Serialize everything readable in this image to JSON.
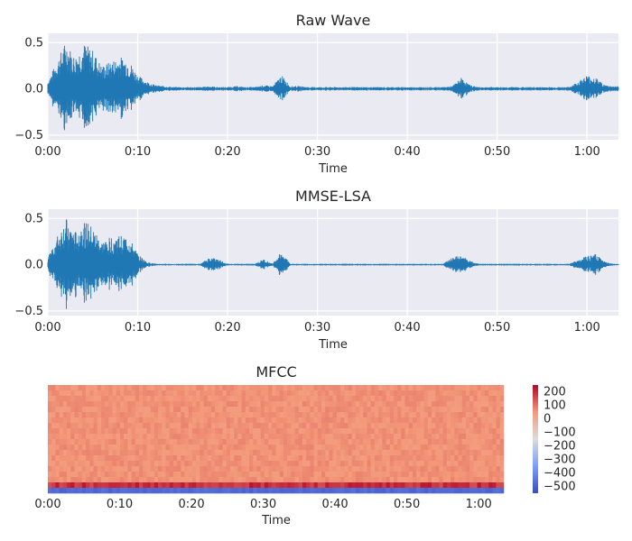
{
  "chart_data": [
    {
      "type": "line",
      "title": "Raw Wave",
      "xlabel": "Time",
      "ylabel": "",
      "xlim": [
        0,
        63.5
      ],
      "ylim": [
        -0.55,
        0.6
      ],
      "x_ticks": [
        0,
        10,
        20,
        30,
        40,
        50,
        60
      ],
      "x_tick_labels": [
        "0:00",
        "0:10",
        "0:20",
        "0:30",
        "0:40",
        "0:50",
        "1:00"
      ],
      "y_ticks": [
        0.5,
        0.0,
        -0.5
      ],
      "y_tick_labels": [
        "0.5",
        "0.0",
        "−0.5"
      ],
      "grid": true,
      "series": [
        {
          "values": {
            "t": [
              0,
              1,
              2,
              3,
              4,
              5,
              6,
              7,
              8,
              9,
              10,
              11,
              12,
              13,
              14,
              15,
              16,
              17,
              18,
              19,
              20,
              21,
              22,
              23,
              24,
              25,
              26,
              27,
              28,
              29,
              30,
              31,
              32,
              33,
              34,
              35,
              36,
              37,
              38,
              39,
              40,
              41,
              42,
              43,
              44,
              45,
              46,
              47,
              48,
              49,
              50,
              51,
              52,
              53,
              54,
              55,
              56,
              57,
              58,
              59,
              60,
              61,
              62,
              63
            ],
            "amp": [
              0.08,
              0.3,
              0.52,
              0.35,
              0.5,
              0.42,
              0.25,
              0.3,
              0.35,
              0.32,
              0.15,
              0.08,
              0.04,
              0.03,
              0.02,
              0.02,
              0.02,
              0.02,
              0.03,
              0.02,
              0.02,
              0.03,
              0.02,
              0.02,
              0.04,
              0.03,
              0.15,
              0.03,
              0.03,
              0.02,
              0.02,
              0.02,
              0.02,
              0.02,
              0.02,
              0.02,
              0.02,
              0.02,
              0.02,
              0.02,
              0.02,
              0.02,
              0.02,
              0.02,
              0.02,
              0.03,
              0.12,
              0.04,
              0.02,
              0.02,
              0.02,
              0.02,
              0.02,
              0.02,
              0.02,
              0.02,
              0.02,
              0.02,
              0.02,
              0.08,
              0.15,
              0.12,
              0.04,
              0.03
            ]
          },
          "color": "#1f77b4"
        }
      ]
    },
    {
      "type": "line",
      "title": "MMSE-LSA",
      "xlabel": "Time",
      "ylabel": "",
      "xlim": [
        0,
        63.5
      ],
      "ylim": [
        -0.55,
        0.6
      ],
      "x_ticks": [
        0,
        10,
        20,
        30,
        40,
        50,
        60
      ],
      "x_tick_labels": [
        "0:00",
        "0:10",
        "0:20",
        "0:30",
        "0:40",
        "0:50",
        "1:00"
      ],
      "y_ticks": [
        0.5,
        0.0,
        -0.5
      ],
      "y_tick_labels": [
        "0.5",
        "0.0",
        "−0.5"
      ],
      "grid": true,
      "series": [
        {
          "values": {
            "t": [
              0,
              1,
              2,
              3,
              4,
              5,
              6,
              7,
              8,
              9,
              10,
              11,
              12,
              13,
              14,
              15,
              16,
              17,
              18,
              19,
              20,
              21,
              22,
              23,
              24,
              25,
              26,
              27,
              28,
              29,
              30,
              31,
              32,
              33,
              34,
              35,
              36,
              37,
              38,
              39,
              40,
              41,
              42,
              43,
              44,
              45,
              46,
              47,
              48,
              49,
              50,
              51,
              52,
              53,
              54,
              55,
              56,
              57,
              58,
              59,
              60,
              61,
              62,
              63
            ],
            "amp": [
              0.08,
              0.3,
              0.5,
              0.35,
              0.48,
              0.4,
              0.25,
              0.3,
              0.32,
              0.3,
              0.12,
              0.03,
              0.01,
              0.01,
              0.01,
              0.01,
              0.01,
              0.01,
              0.08,
              0.06,
              0.01,
              0.01,
              0.01,
              0.01,
              0.06,
              0.01,
              0.15,
              0.01,
              0.01,
              0.01,
              0.01,
              0.01,
              0.01,
              0.01,
              0.01,
              0.01,
              0.01,
              0.01,
              0.01,
              0.01,
              0.01,
              0.01,
              0.01,
              0.01,
              0.01,
              0.08,
              0.1,
              0.04,
              0.01,
              0.01,
              0.01,
              0.01,
              0.01,
              0.01,
              0.01,
              0.01,
              0.01,
              0.01,
              0.01,
              0.05,
              0.1,
              0.12,
              0.03,
              0.01
            ]
          },
          "color": "#1f77b4"
        }
      ]
    },
    {
      "type": "heatmap",
      "title": "MFCC",
      "xlabel": "Time",
      "ylabel": "",
      "xlim": [
        0,
        63.5
      ],
      "x_ticks": [
        0,
        10,
        20,
        30,
        40,
        50,
        60
      ],
      "x_tick_labels": [
        "0:00",
        "0:10",
        "0:20",
        "0:30",
        "0:40",
        "0:50",
        "1:00"
      ],
      "colormap": "coolwarm",
      "value_range": [
        -550,
        250
      ],
      "colorbar_ticks": [
        200,
        100,
        0,
        -100,
        -200,
        -300,
        -400,
        -500
      ],
      "colorbar_tick_labels": [
        "200",
        "100",
        "0",
        "−100",
        "−200",
        "−300",
        "−400",
        "−500"
      ],
      "rows": 20,
      "dominant_value": 60,
      "bottom_row_value": -500
    }
  ]
}
